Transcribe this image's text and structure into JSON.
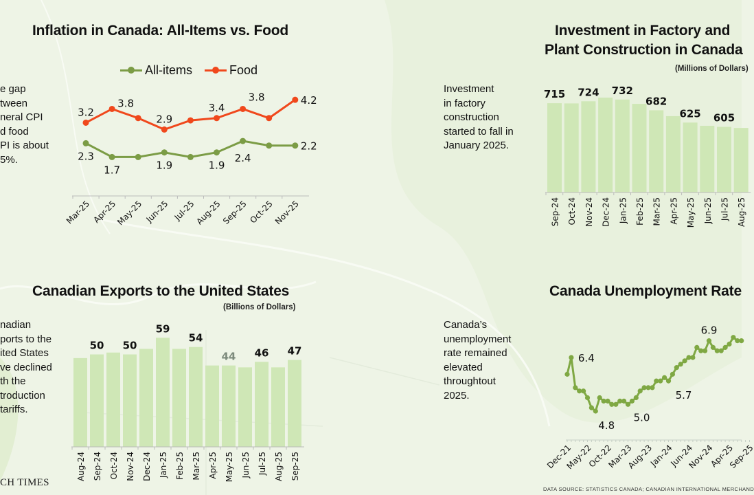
{
  "colors": {
    "background": "#eef4e6",
    "all_items": "#7b9c45",
    "food": "#f0481c",
    "bars": "#cfe7b6",
    "unemployment": "#7fa843",
    "muted_label": "#7c8a7c"
  },
  "cpi": {
    "title": "Inflation in Canada: All-Items vs. Food",
    "note": [
      "e gap",
      "tween",
      "neral CPI",
      "d food",
      "PI is about",
      "5%."
    ],
    "legend": [
      "All-items",
      "Food"
    ]
  },
  "investment": {
    "title_lines": [
      "Investment in Factory and",
      "Plant Construction in Canada"
    ],
    "subtitle": "(Millions of Dollars)",
    "note": [
      "Investment",
      "in factory",
      "construction",
      "started to fall in",
      "January 2025."
    ]
  },
  "exports": {
    "title": "Canadian Exports to the United States",
    "subtitle": "(Billions of Dollars)",
    "note": [
      "nadian",
      "ports to the",
      "ited States",
      "ve declined",
      "th the",
      "troduction",
      "tariffs."
    ]
  },
  "unemployment": {
    "title": "Canada Unemployment Rate",
    "note": [
      "Canada’s",
      "unemployment",
      "rate remained",
      "elevated",
      "throughtout",
      "2025."
    ]
  },
  "footer": {
    "logo": "CH TIMES",
    "source": "DATA SOURCE: STATISTICS CANADA; CANADIAN INTERNATIONAL MERCHAND"
  },
  "chart_data": [
    {
      "type": "line",
      "title": "Inflation in Canada: All-Items vs. Food",
      "categories": [
        "Mar-25",
        "Apr-25",
        "May-25",
        "Jun-25",
        "Jul-25",
        "Aug-25",
        "Sep-25",
        "Oct-25",
        "Nov-25"
      ],
      "ylim": [
        0,
        5
      ],
      "grid": false,
      "legend": "top",
      "series": [
        {
          "name": "All-items",
          "values": [
            2.3,
            1.7,
            1.7,
            1.9,
            1.7,
            1.9,
            2.4,
            2.2,
            2.2
          ],
          "labels": [
            "2.3",
            "1.7",
            null,
            "1.9",
            null,
            "1.9",
            "2.4",
            null,
            "2.2"
          ]
        },
        {
          "name": "Food",
          "values": [
            3.2,
            3.8,
            3.4,
            2.9,
            3.3,
            3.4,
            3.8,
            3.4,
            4.2
          ],
          "labels": [
            "3.2",
            "3.8",
            null,
            "2.9",
            null,
            "3.4",
            "3.8",
            null,
            "4.2"
          ]
        }
      ]
    },
    {
      "type": "bar",
      "title": "Investment in Factory and Plant Construction in Canada",
      "ylabel": "(Millions of Dollars)",
      "categories": [
        "Sep-24",
        "Oct-24",
        "Nov-24",
        "Dec-24",
        "Jan-25",
        "Feb-25",
        "Mar-25",
        "Apr-25",
        "May-25",
        "Jun-25",
        "Jul-25",
        "Aug-25"
      ],
      "values": [
        715,
        714,
        724,
        741,
        732,
        712,
        682,
        655,
        625,
        610,
        605,
        600
      ],
      "labels": [
        "715",
        null,
        "724",
        null,
        "732",
        null,
        "682",
        null,
        "625",
        null,
        "605",
        null
      ],
      "ylim": [
        300,
        760
      ],
      "grid": false
    },
    {
      "type": "bar",
      "title": "Canadian Exports to the United States",
      "ylabel": "(Billions of Dollars)",
      "categories": [
        "Aug-24",
        "Sep-24",
        "Oct-24",
        "Nov-24",
        "Dec-24",
        "Jan-25",
        "Feb-25",
        "Mar-25",
        "Apr-25",
        "May-25",
        "Jun-25",
        "Jul-25",
        "Aug-25",
        "Sep-25"
      ],
      "values": [
        48,
        50,
        51,
        50,
        53,
        59,
        53,
        54,
        44,
        44,
        43,
        46,
        43,
        47
      ],
      "labels": [
        null,
        "50",
        null,
        "50",
        null,
        "59",
        null,
        "54",
        null,
        "44",
        null,
        "46",
        null,
        "47"
      ],
      "muted_label_index": 9,
      "ylim": [
        0,
        65
      ],
      "grid": false
    },
    {
      "type": "line",
      "title": "Canada Unemployment Rate",
      "x_start": "Dec-21",
      "tick_labels": [
        "Dec-21",
        "May-22",
        "Oct-22",
        "Mar-23",
        "Aug-23",
        "Jan-24",
        "Jun-24",
        "Nov-24",
        "Apr-25",
        "Sep-25"
      ],
      "values": [
        5.9,
        6.4,
        5.5,
        5.4,
        5.4,
        5.2,
        4.9,
        4.8,
        5.2,
        5.1,
        5.1,
        5.0,
        5.0,
        5.1,
        5.1,
        5.0,
        5.1,
        5.2,
        5.4,
        5.5,
        5.5,
        5.5,
        5.7,
        5.7,
        5.8,
        5.7,
        5.9,
        6.1,
        6.2,
        6.3,
        6.4,
        6.4,
        6.7,
        6.6,
        6.6,
        6.9,
        6.7,
        6.6,
        6.6,
        6.7,
        6.8,
        7.0,
        6.9,
        6.9
      ],
      "point_labels": [
        {
          "index": 1,
          "text": "6.4"
        },
        {
          "index": 7,
          "text": "4.8"
        },
        {
          "index": 15,
          "text": "5.0"
        },
        {
          "index": 25,
          "text": "5.7"
        },
        {
          "index": 35,
          "text": "6.9"
        }
      ],
      "grid": false
    }
  ]
}
